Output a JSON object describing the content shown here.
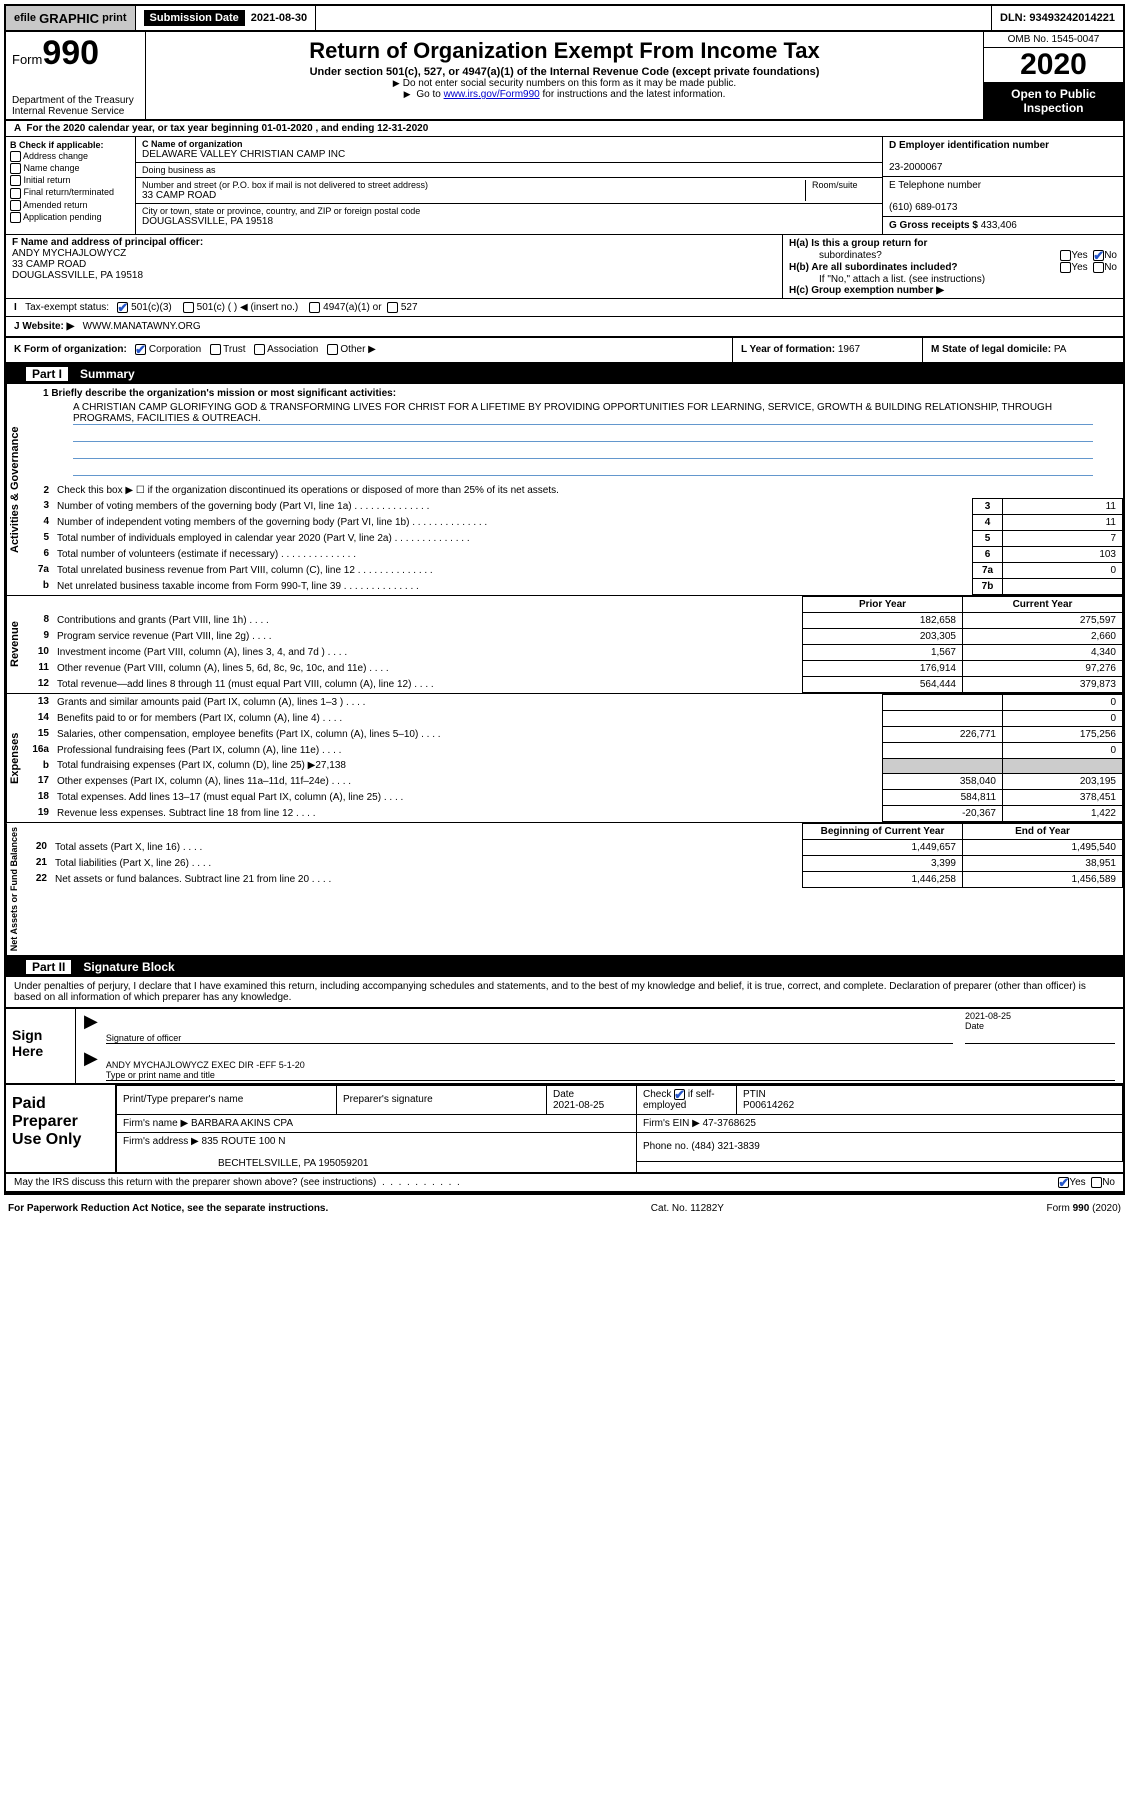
{
  "topbar": {
    "efile_prefix": "efile",
    "efile_main": "GRAPHIC",
    "efile_suffix": "print",
    "sub_label": "Submission Date",
    "sub_value": "2021-08-30",
    "dln_label": "DLN:",
    "dln_value": "93493242014221"
  },
  "header": {
    "form_word": "Form",
    "form_num": "990",
    "title": "Return of Organization Exempt From Income Tax",
    "sub1": "Under section 501(c), 527, or 4947(a)(1) of the Internal Revenue Code (except private foundations)",
    "note1": "Do not enter social security numbers on this form as it may be made public.",
    "note2_pre": "Go to",
    "note2_link": "www.irs.gov/Form990",
    "note2_post": "for instructions and the latest information.",
    "dept": "Department of the Treasury\nInternal Revenue Service",
    "omb": "OMB No. 1545-0047",
    "year": "2020",
    "public1": "Open to Public",
    "public2": "Inspection"
  },
  "lineA": "For the 2020 calendar year, or tax year beginning 01-01-2020    , and ending 12-31-2020",
  "boxB": {
    "title": "B Check if applicable:",
    "opts": [
      "Address change",
      "Name change",
      "Initial return",
      "Final return/terminated",
      "Amended return",
      "Application pending"
    ]
  },
  "boxC": {
    "name_label": "C Name of organization",
    "org_name": "DELAWARE VALLEY CHRISTIAN CAMP INC",
    "dba_label": "Doing business as",
    "dba": "",
    "addr_label": "Number and street (or P.O. box if mail is not delivered to street address)",
    "room_label": "Room/suite",
    "addr": "33 CAMP ROAD",
    "city_label": "City or town, state or province, country, and ZIP or foreign postal code",
    "city": "DOUGLASSVILLE, PA  19518"
  },
  "boxD": {
    "label": "D Employer identification number",
    "value": "23-2000067"
  },
  "boxE": {
    "label": "E Telephone number",
    "value": "(610) 689-0173"
  },
  "boxG": {
    "label": "G Gross receipts $",
    "value": "433,406"
  },
  "boxF": {
    "label": "F  Name and address of principal officer:",
    "name": "ANDY MYCHAJLOWYCZ",
    "addr": "33 CAMP ROAD",
    "city": "DOUGLASSVILLE, PA  19518"
  },
  "boxH": {
    "a_label": "H(a)  Is this a group return for",
    "a_label2": "subordinates?",
    "b_label": "H(b)  Are all subordinates included?",
    "b_note": "If \"No,\" attach a list. (see instructions)",
    "c_label": "H(c)  Group exemption number ▶",
    "yes": "Yes",
    "no": "No"
  },
  "tax": {
    "label": "Tax-exempt status:",
    "c3": "501(c)(3)",
    "c": "501(c) (  ) ◀ (insert no.)",
    "a4947": "4947(a)(1) or",
    "s527": "527"
  },
  "boxJ": {
    "label": "J   Website: ▶",
    "value": "WWW.MANATAWNY.ORG"
  },
  "boxK": {
    "label": "K Form of organization:",
    "opts": [
      "Corporation",
      "Trust",
      "Association",
      "Other ▶"
    ]
  },
  "boxL": {
    "label": "L Year of formation:",
    "value": "1967"
  },
  "boxM": {
    "label": "M State of legal domicile:",
    "value": "PA"
  },
  "part1": {
    "num": "Part I",
    "title": "Summary"
  },
  "mission": {
    "q1_label": "1  Briefly describe the organization's mission or most significant activities:",
    "text": "A CHRISTIAN CAMP GLORIFYING GOD & TRANSFORMING LIVES FOR CHRIST FOR A LIFETIME BY PROVIDING OPPORTUNITIES FOR LEARNING, SERVICE, GROWTH & BUILDING RELATIONSHIP, THROUGH PROGRAMS, FACILITIES & OUTREACH."
  },
  "sections": {
    "activities": "Activities & Governance",
    "revenue": "Revenue",
    "expenses": "Expenses",
    "netassets": "Net Assets or Fund Balances"
  },
  "activities_rows": [
    {
      "n": "2",
      "desc": "Check this box ▶ ☐  if the organization discontinued its operations or disposed of more than 25% of its net assets."
    },
    {
      "n": "3",
      "desc": "Number of voting members of the governing body (Part VI, line 1a)",
      "box": "3",
      "val": "11"
    },
    {
      "n": "4",
      "desc": "Number of independent voting members of the governing body (Part VI, line 1b)",
      "box": "4",
      "val": "11"
    },
    {
      "n": "5",
      "desc": "Total number of individuals employed in calendar year 2020 (Part V, line 2a)",
      "box": "5",
      "val": "7"
    },
    {
      "n": "6",
      "desc": "Total number of volunteers (estimate if necessary)",
      "box": "6",
      "val": "103"
    },
    {
      "n": "7a",
      "desc": "Total unrelated business revenue from Part VIII, column (C), line 12",
      "box": "7a",
      "val": "0"
    },
    {
      "n": "b",
      "desc": "Net unrelated business taxable income from Form 990-T, line 39",
      "box": "7b",
      "val": ""
    }
  ],
  "twocol_header": {
    "prior": "Prior Year",
    "current": "Current Year"
  },
  "revenue_rows": [
    {
      "n": "8",
      "desc": "Contributions and grants (Part VIII, line 1h)",
      "p": "182,658",
      "c": "275,597"
    },
    {
      "n": "9",
      "desc": "Program service revenue (Part VIII, line 2g)",
      "p": "203,305",
      "c": "2,660"
    },
    {
      "n": "10",
      "desc": "Investment income (Part VIII, column (A), lines 3, 4, and 7d )",
      "p": "1,567",
      "c": "4,340"
    },
    {
      "n": "11",
      "desc": "Other revenue (Part VIII, column (A), lines 5, 6d, 8c, 9c, 10c, and 11e)",
      "p": "176,914",
      "c": "97,276"
    },
    {
      "n": "12",
      "desc": "Total revenue—add lines 8 through 11 (must equal Part VIII, column (A), line 12)",
      "p": "564,444",
      "c": "379,873"
    }
  ],
  "expenses_rows": [
    {
      "n": "13",
      "desc": "Grants and similar amounts paid (Part IX, column (A), lines 1–3 )",
      "p": "",
      "c": "0"
    },
    {
      "n": "14",
      "desc": "Benefits paid to or for members (Part IX, column (A), line 4)",
      "p": "",
      "c": "0"
    },
    {
      "n": "15",
      "desc": "Salaries, other compensation, employee benefits (Part IX, column (A), lines 5–10)",
      "p": "226,771",
      "c": "175,256"
    },
    {
      "n": "16a",
      "desc": "Professional fundraising fees (Part IX, column (A), line 11e)",
      "p": "",
      "c": "0"
    },
    {
      "n": "b",
      "desc": "Total fundraising expenses (Part IX, column (D), line 25) ▶27,138",
      "grey": true
    },
    {
      "n": "17",
      "desc": "Other expenses (Part IX, column (A), lines 11a–11d, 11f–24e)",
      "p": "358,040",
      "c": "203,195"
    },
    {
      "n": "18",
      "desc": "Total expenses. Add lines 13–17 (must equal Part IX, column (A), line 25)",
      "p": "584,811",
      "c": "378,451"
    },
    {
      "n": "19",
      "desc": "Revenue less expenses. Subtract line 18 from line 12",
      "p": "-20,367",
      "c": "1,422"
    }
  ],
  "net_header": {
    "begin": "Beginning of Current Year",
    "end": "End of Year"
  },
  "net_rows": [
    {
      "n": "20",
      "desc": "Total assets (Part X, line 16)",
      "p": "1,449,657",
      "c": "1,495,540"
    },
    {
      "n": "21",
      "desc": "Total liabilities (Part X, line 26)",
      "p": "3,399",
      "c": "38,951"
    },
    {
      "n": "22",
      "desc": "Net assets or fund balances. Subtract line 21 from line 20",
      "p": "1,446,258",
      "c": "1,456,589"
    }
  ],
  "part2": {
    "num": "Part II",
    "title": "Signature Block"
  },
  "penalty": "Under penalties of perjury, I declare that I have examined this return, including accompanying schedules and statements, and to the best of my knowledge and belief, it is true, correct, and complete. Declaration of preparer (other than officer) is based on all information of which preparer has any knowledge.",
  "sign": {
    "label": "Sign Here",
    "sig_label": "Signature of officer",
    "date_label": "Date",
    "date_val": "2021-08-25",
    "name": "ANDY MYCHAJLOWYCZ  EXEC DIR -EFF 5-1-20",
    "name_label": "Type or print name and title"
  },
  "prep": {
    "label": "Paid Preparer Use Only",
    "h1": "Print/Type preparer's name",
    "h2": "Preparer's signature",
    "h3": "Date",
    "date": "2021-08-25",
    "h4_pre": "Check",
    "h4_post": "if self-employed",
    "h5": "PTIN",
    "ptin": "P00614262",
    "firm_name_label": "Firm's name    ▶",
    "firm_name": "BARBARA AKINS CPA",
    "firm_ein_label": "Firm's EIN ▶",
    "firm_ein": "47-3768625",
    "firm_addr_label": "Firm's address ▶",
    "firm_addr1": "835 ROUTE 100 N",
    "firm_addr2": "BECHTELSVILLE, PA  195059201",
    "phone_label": "Phone no.",
    "phone": "(484) 321-3839"
  },
  "discuss": {
    "q": "May the IRS discuss this return with the preparer shown above? (see instructions)",
    "yes": "Yes",
    "no": "No"
  },
  "footer": {
    "left": "For Paperwork Reduction Act Notice, see the separate instructions.",
    "mid": "Cat. No. 11282Y",
    "right_pre": "Form",
    "right_bold": "990",
    "right_post": "(2020)"
  }
}
